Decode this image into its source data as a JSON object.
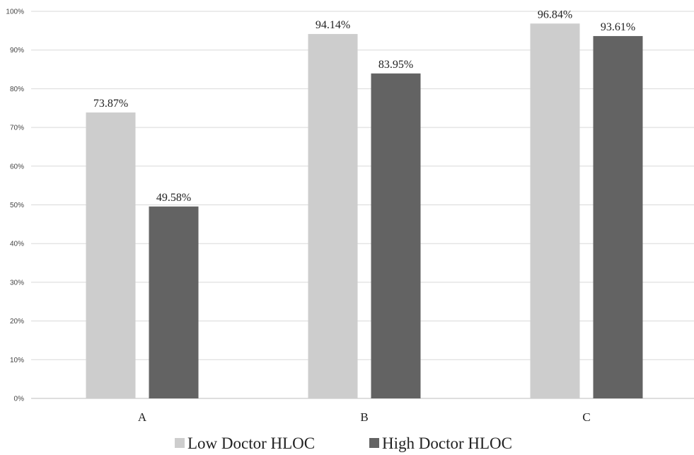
{
  "chart_data": {
    "type": "bar",
    "categories": [
      "A",
      "B",
      "C"
    ],
    "series": [
      {
        "name": "Low Doctor HLOC",
        "color": "#cdcdcd",
        "values": [
          73.87,
          94.14,
          96.84
        ],
        "labels": [
          "73.87%",
          "94.14%",
          "96.84%"
        ]
      },
      {
        "name": "High Doctor HLOC",
        "color": "#636363",
        "values": [
          49.58,
          83.95,
          93.61
        ],
        "labels": [
          "49.58%",
          "83.95%",
          "93.61%"
        ]
      }
    ],
    "ylim": [
      0,
      100
    ],
    "yticks": [
      "0%",
      "10%",
      "20%",
      "30%",
      "40%",
      "50%",
      "60%",
      "70%",
      "80%",
      "90%",
      "100%"
    ],
    "grid": true,
    "legend": "bottom-center"
  }
}
